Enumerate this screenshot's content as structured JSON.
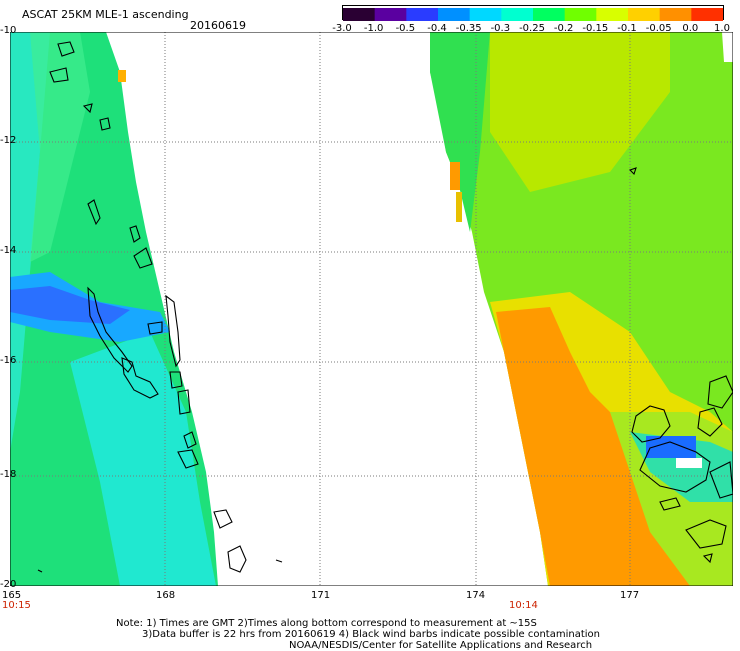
{
  "header": {
    "title": "ASCAT 25KM MLE-1 ascending",
    "date": "20160619"
  },
  "colorbar": {
    "tick_labels": [
      "-3.0",
      "-1.0",
      "-0.5",
      "-0.4",
      "-0.35",
      "-0.3",
      "-0.25",
      "-0.2",
      "-0.15",
      "-0.1",
      "-0.05",
      "0.0",
      "1.0"
    ],
    "colors": [
      "#2a0033",
      "#5a00a0",
      "#2a3cff",
      "#0090ff",
      "#00d8ff",
      "#00ffd0",
      "#00ff60",
      "#70ff00",
      "#d8ff00",
      "#ffd000",
      "#ff9000",
      "#ff3000"
    ]
  },
  "map": {
    "lon_labels": [
      "165",
      "168",
      "171",
      "174",
      "177"
    ],
    "lat_labels": [
      "-10",
      "-12",
      "-14",
      "-16",
      "-18",
      "-20"
    ],
    "pass_times": [
      "10:15",
      "10:14"
    ]
  },
  "notes": {
    "line1": "Note: 1) Times are GMT 2)Times along bottom correspond to measurement at ~15S",
    "line2": "3)Data buffer is 22 hrs from 20160619 4) Black wind barbs indicate possible contamination",
    "line3": "NOAA/NESDIS/Center for Satellite Applications and Research"
  }
}
